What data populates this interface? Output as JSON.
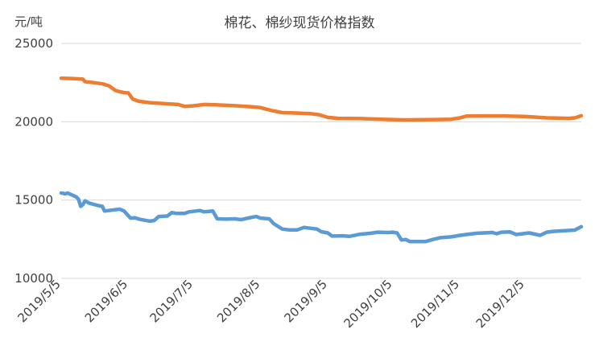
{
  "chart_data": {
    "type": "line",
    "title": "棉花、棉纱现货价格指数",
    "unit_label": "元/吨",
    "ylim": [
      10000,
      25000
    ],
    "y_ticks": [
      10000,
      15000,
      20000,
      25000
    ],
    "y_tick_labels": [
      "10000",
      "15000",
      "20000",
      "25000"
    ],
    "x_range": [
      "2019-05-05",
      "2019-12-31"
    ],
    "x_ticks": [
      "2019-05-05",
      "2019-06-05",
      "2019-07-05",
      "2019-08-05",
      "2019-09-05",
      "2019-10-05",
      "2019-11-05",
      "2019-12-05"
    ],
    "x_tick_labels": [
      "2019/5/5",
      "2019/6/5",
      "2019/7/5",
      "2019/8/5",
      "2019/9/5",
      "2019/10/5",
      "2019/11/5",
      "2019/12/5"
    ],
    "grid": true,
    "legend": "none",
    "series": [
      {
        "color": "#ED7D31",
        "points": [
          [
            "2019-05-05",
            22780
          ],
          [
            "2019-05-10",
            22760
          ],
          [
            "2019-05-15",
            22720
          ],
          [
            "2019-05-16",
            22560
          ],
          [
            "2019-05-20",
            22500
          ],
          [
            "2019-05-24",
            22420
          ],
          [
            "2019-05-27",
            22300
          ],
          [
            "2019-05-30",
            22000
          ],
          [
            "2019-06-01",
            21920
          ],
          [
            "2019-06-03",
            21860
          ],
          [
            "2019-06-05",
            21840
          ],
          [
            "2019-06-07",
            21450
          ],
          [
            "2019-06-10",
            21300
          ],
          [
            "2019-06-15",
            21220
          ],
          [
            "2019-06-22",
            21150
          ],
          [
            "2019-06-28",
            21100
          ],
          [
            "2019-07-01",
            20980
          ],
          [
            "2019-07-05",
            21020
          ],
          [
            "2019-07-10",
            21100
          ],
          [
            "2019-07-15",
            21080
          ],
          [
            "2019-07-20",
            21050
          ],
          [
            "2019-07-25",
            21020
          ],
          [
            "2019-08-01",
            20950
          ],
          [
            "2019-08-05",
            20900
          ],
          [
            "2019-08-10",
            20720
          ],
          [
            "2019-08-15",
            20580
          ],
          [
            "2019-08-20",
            20560
          ],
          [
            "2019-08-28",
            20520
          ],
          [
            "2019-09-01",
            20450
          ],
          [
            "2019-09-05",
            20280
          ],
          [
            "2019-09-10",
            20220
          ],
          [
            "2019-09-20",
            20200
          ],
          [
            "2019-10-01",
            20150
          ],
          [
            "2019-10-10",
            20120
          ],
          [
            "2019-10-20",
            20130
          ],
          [
            "2019-10-25",
            20140
          ],
          [
            "2019-11-01",
            20160
          ],
          [
            "2019-11-05",
            20250
          ],
          [
            "2019-11-08",
            20360
          ],
          [
            "2019-11-15",
            20370
          ],
          [
            "2019-11-25",
            20370
          ],
          [
            "2019-12-05",
            20340
          ],
          [
            "2019-12-15",
            20250
          ],
          [
            "2019-12-25",
            20220
          ],
          [
            "2019-12-28",
            20250
          ],
          [
            "2019-12-31",
            20380
          ]
        ]
      },
      {
        "color": "#5B9BD5",
        "points": [
          [
            "2019-05-05",
            15450
          ],
          [
            "2019-05-07",
            15400
          ],
          [
            "2019-05-08",
            15450
          ],
          [
            "2019-05-12",
            15200
          ],
          [
            "2019-05-13",
            15050
          ],
          [
            "2019-05-14",
            14600
          ],
          [
            "2019-05-15",
            14700
          ],
          [
            "2019-05-16",
            14950
          ],
          [
            "2019-05-18",
            14800
          ],
          [
            "2019-05-22",
            14650
          ],
          [
            "2019-05-24",
            14600
          ],
          [
            "2019-05-25",
            14300
          ],
          [
            "2019-05-28",
            14350
          ],
          [
            "2019-06-01",
            14420
          ],
          [
            "2019-06-03",
            14300
          ],
          [
            "2019-06-06",
            13850
          ],
          [
            "2019-06-08",
            13870
          ],
          [
            "2019-06-10",
            13780
          ],
          [
            "2019-06-15",
            13650
          ],
          [
            "2019-06-17",
            13700
          ],
          [
            "2019-06-19",
            13950
          ],
          [
            "2019-06-23",
            13980
          ],
          [
            "2019-06-25",
            14200
          ],
          [
            "2019-06-27",
            14150
          ],
          [
            "2019-07-01",
            14150
          ],
          [
            "2019-07-03",
            14250
          ],
          [
            "2019-07-08",
            14330
          ],
          [
            "2019-07-10",
            14250
          ],
          [
            "2019-07-14",
            14300
          ],
          [
            "2019-07-16",
            13800
          ],
          [
            "2019-07-20",
            13780
          ],
          [
            "2019-07-24",
            13800
          ],
          [
            "2019-07-27",
            13750
          ],
          [
            "2019-08-01",
            13900
          ],
          [
            "2019-08-03",
            13950
          ],
          [
            "2019-08-05",
            13850
          ],
          [
            "2019-08-09",
            13800
          ],
          [
            "2019-08-11",
            13500
          ],
          [
            "2019-08-15",
            13150
          ],
          [
            "2019-08-18",
            13100
          ],
          [
            "2019-08-22",
            13100
          ],
          [
            "2019-08-25",
            13250
          ],
          [
            "2019-08-28",
            13200
          ],
          [
            "2019-08-31",
            13150
          ],
          [
            "2019-09-02",
            12980
          ],
          [
            "2019-09-05",
            12900
          ],
          [
            "2019-09-07",
            12700
          ],
          [
            "2019-09-12",
            12720
          ],
          [
            "2019-09-15",
            12680
          ],
          [
            "2019-09-20",
            12820
          ],
          [
            "2019-09-25",
            12880
          ],
          [
            "2019-09-28",
            12950
          ],
          [
            "2019-10-03",
            12930
          ],
          [
            "2019-10-05",
            12950
          ],
          [
            "2019-10-07",
            12900
          ],
          [
            "2019-10-09",
            12450
          ],
          [
            "2019-10-11",
            12480
          ],
          [
            "2019-10-13",
            12350
          ],
          [
            "2019-10-20",
            12350
          ],
          [
            "2019-10-24",
            12500
          ],
          [
            "2019-10-27",
            12600
          ],
          [
            "2019-11-01",
            12650
          ],
          [
            "2019-11-05",
            12750
          ],
          [
            "2019-11-09",
            12820
          ],
          [
            "2019-11-13",
            12880
          ],
          [
            "2019-11-20",
            12930
          ],
          [
            "2019-11-22",
            12850
          ],
          [
            "2019-11-24",
            12950
          ],
          [
            "2019-11-28",
            12970
          ],
          [
            "2019-12-01",
            12800
          ],
          [
            "2019-12-04",
            12850
          ],
          [
            "2019-12-07",
            12900
          ],
          [
            "2019-12-12",
            12750
          ],
          [
            "2019-12-15",
            12950
          ],
          [
            "2019-12-18",
            13000
          ],
          [
            "2019-12-24",
            13050
          ],
          [
            "2019-12-28",
            13080
          ],
          [
            "2019-12-31",
            13300
          ]
        ]
      }
    ]
  }
}
